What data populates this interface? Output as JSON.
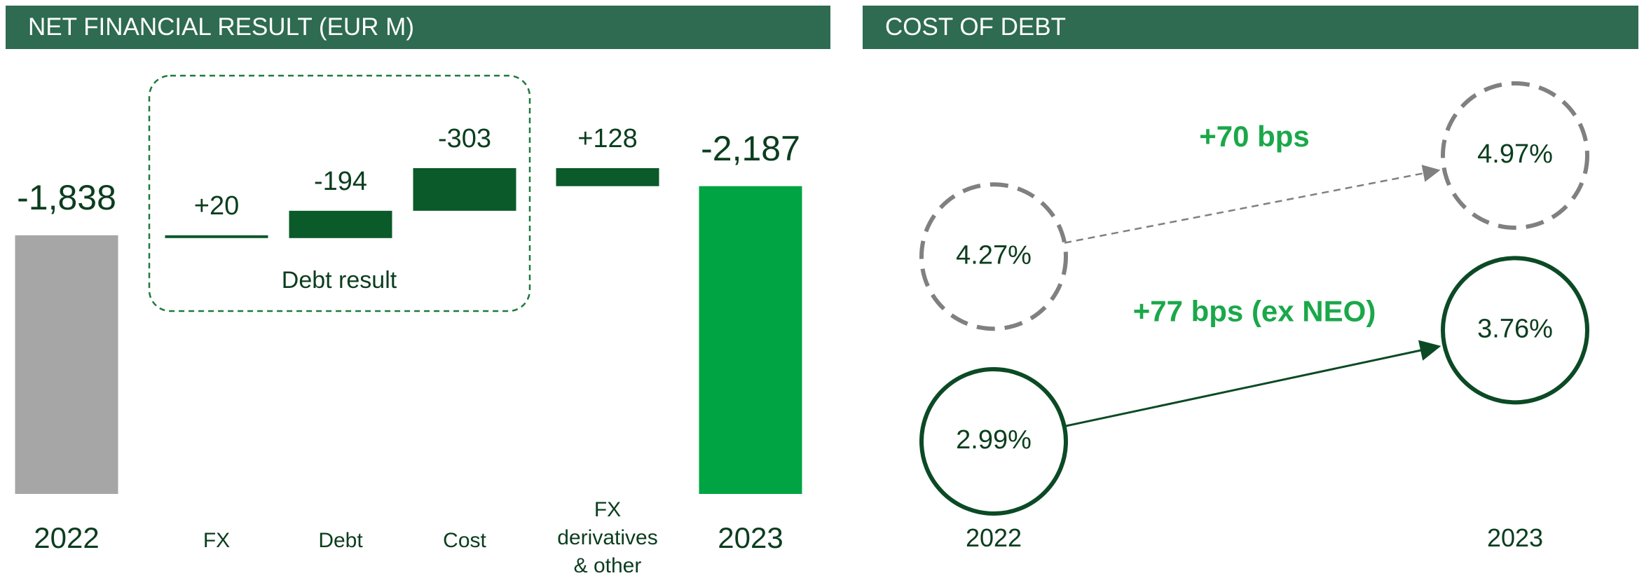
{
  "chart_data": [
    {
      "type": "waterfall",
      "title": "NET FINANCIAL RESULT (EUR M)",
      "categories": [
        "2022",
        "FX",
        "Debt",
        "Cost",
        "FX derivatives & other",
        "2023"
      ],
      "values": [
        -1838,
        20,
        -194,
        -303,
        128,
        -2187
      ],
      "value_labels": [
        "-1,838",
        "+20",
        "-194",
        "-303",
        "+128",
        "-2,187"
      ],
      "colors": {
        "start": "#a6a6a6",
        "delta": "#0b5a2a",
        "total": "#00a443"
      },
      "annotation": "Debt result"
    },
    {
      "type": "slope",
      "title": "COST OF DEBT",
      "categories": [
        "2022",
        "2023"
      ],
      "series": [
        {
          "color": "#808080",
          "style": "dashed",
          "values": [
            4.27,
            4.97
          ],
          "value_labels": [
            "4.27%",
            "4.97%"
          ],
          "annotation": "+70 bps"
        },
        {
          "color": "#0b4a25",
          "style": "solid",
          "values": [
            2.99,
            3.76
          ],
          "value_labels": [
            "2.99%",
            "3.76%"
          ],
          "annotation": "+77 bps (ex NEO)"
        }
      ]
    }
  ]
}
